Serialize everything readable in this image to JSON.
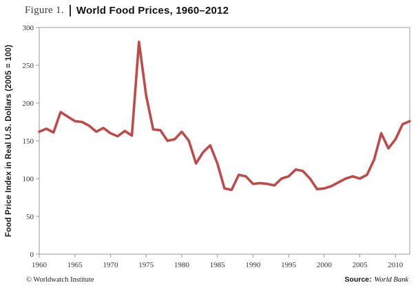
{
  "header": {
    "figure_label": "Figure 1.",
    "title": "World Food Prices, 1960–2012"
  },
  "footer": {
    "copyright": "© Worldwatch Institute",
    "source_label": "Source:",
    "source_value": "World Bank"
  },
  "chart_data": {
    "type": "line",
    "title": "World Food Prices, 1960–2012",
    "xlabel": "",
    "ylabel": "Food Price Index in Real U.S. Dollars (2005 = 100)",
    "xlim": [
      1960,
      2012
    ],
    "ylim": [
      0,
      300
    ],
    "x_ticks": [
      1960,
      1965,
      1970,
      1975,
      1980,
      1985,
      1990,
      1995,
      2000,
      2005,
      2010
    ],
    "y_ticks": [
      0,
      50,
      100,
      150,
      200,
      250,
      300
    ],
    "grid": false,
    "legend": "none",
    "series_color": "#bf4a47",
    "x": [
      1960,
      1961,
      1962,
      1963,
      1964,
      1965,
      1966,
      1967,
      1968,
      1969,
      1970,
      1971,
      1972,
      1973,
      1974,
      1975,
      1976,
      1977,
      1978,
      1979,
      1980,
      1981,
      1982,
      1983,
      1984,
      1985,
      1986,
      1987,
      1988,
      1989,
      1990,
      1991,
      1992,
      1993,
      1994,
      1995,
      1996,
      1997,
      1998,
      1999,
      2000,
      2001,
      2002,
      2003,
      2004,
      2005,
      2006,
      2007,
      2008,
      2009,
      2010,
      2011,
      2012
    ],
    "values": [
      162,
      166,
      161,
      188,
      182,
      176,
      175,
      170,
      162,
      167,
      160,
      156,
      163,
      157,
      281,
      210,
      165,
      164,
      150,
      152,
      162,
      150,
      120,
      135,
      144,
      120,
      87,
      85,
      105,
      103,
      93,
      94,
      93,
      91,
      100,
      103,
      112,
      110,
      100,
      86,
      87,
      90,
      95,
      100,
      103,
      100,
      105,
      125,
      160,
      140,
      152,
      172,
      176
    ]
  }
}
